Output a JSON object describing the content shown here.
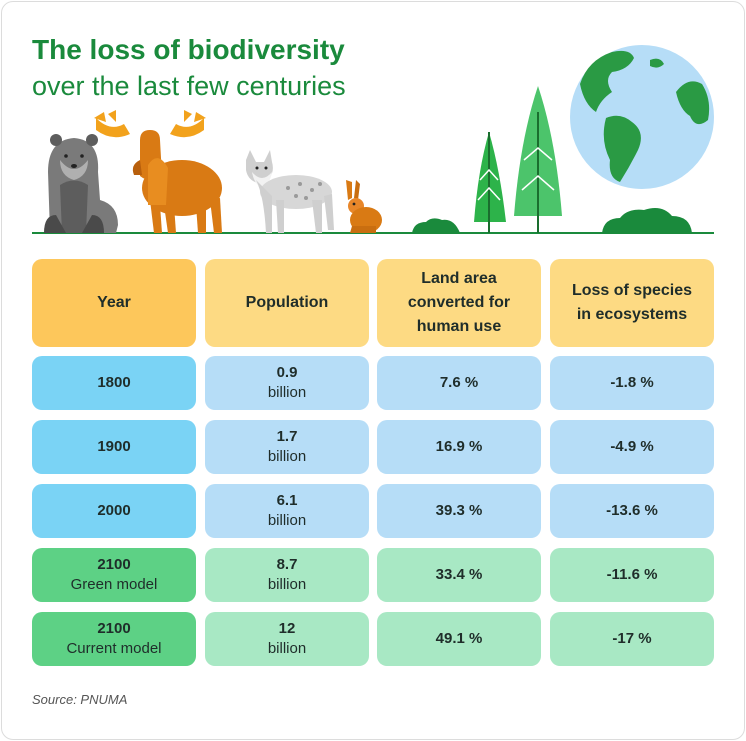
{
  "title": "The loss of biodiversity",
  "subtitle": "over the last few centuries",
  "colors": {
    "title_green": "#1a8a3c",
    "header_dark": "#fdc75b",
    "header_light": "#fdda83",
    "blue_dark": "#7ad3f5",
    "blue_light": "#b6ddf7",
    "green_dark": "#5dd185",
    "green_light": "#a8e8c4"
  },
  "icons": [
    "bear-icon",
    "moose-icon",
    "lynx-icon",
    "hare-icon",
    "bush-icon",
    "tree-icon",
    "globe-icon"
  ],
  "table": {
    "headers": [
      "Year",
      "Population",
      "Land area converted for human use",
      "Loss of species in ecosystems"
    ],
    "header_lines": [
      [
        "Year"
      ],
      [
        "Population"
      ],
      [
        "Land area",
        "converted for",
        "human use"
      ],
      [
        "Loss of species",
        "in ecosystems"
      ]
    ],
    "rows": [
      {
        "year": "1800",
        "model": "",
        "pop": "0.9",
        "unit": "billion",
        "land": "7.6 %",
        "loss": "-1.8 %",
        "group": "blue"
      },
      {
        "year": "1900",
        "model": "",
        "pop": "1.7",
        "unit": "billion",
        "land": "16.9 %",
        "loss": "-4.9 %",
        "group": "blue"
      },
      {
        "year": "2000",
        "model": "",
        "pop": "6.1",
        "unit": "billion",
        "land": "39.3 %",
        "loss": "-13.6 %",
        "group": "blue"
      },
      {
        "year": "2100",
        "model": "Green model",
        "pop": "8.7",
        "unit": "billion",
        "land": "33.4 %",
        "loss": "-11.6 %",
        "group": "green"
      },
      {
        "year": "2100",
        "model": "Current model",
        "pop": "12",
        "unit": "billion",
        "land": "49.1 %",
        "loss": "-17 %",
        "group": "green"
      }
    ]
  },
  "chart_data": {
    "type": "table",
    "columns": [
      "Year",
      "Population",
      "Land area converted for human use",
      "Loss of species in ecosystems"
    ],
    "rows": [
      [
        "1800",
        "0.9 billion",
        "7.6 %",
        "-1.8 %"
      ],
      [
        "1900",
        "1.7 billion",
        "16.9 %",
        "-4.9 %"
      ],
      [
        "2000",
        "6.1 billion",
        "39.3 %",
        "-13.6 %"
      ],
      [
        "2100 Green model",
        "8.7 billion",
        "33.4 %",
        "-11.6 %"
      ],
      [
        "2100 Current model",
        "12 billion",
        "49.1 %",
        "-17 %"
      ]
    ]
  },
  "source": "Source: PNUMA"
}
